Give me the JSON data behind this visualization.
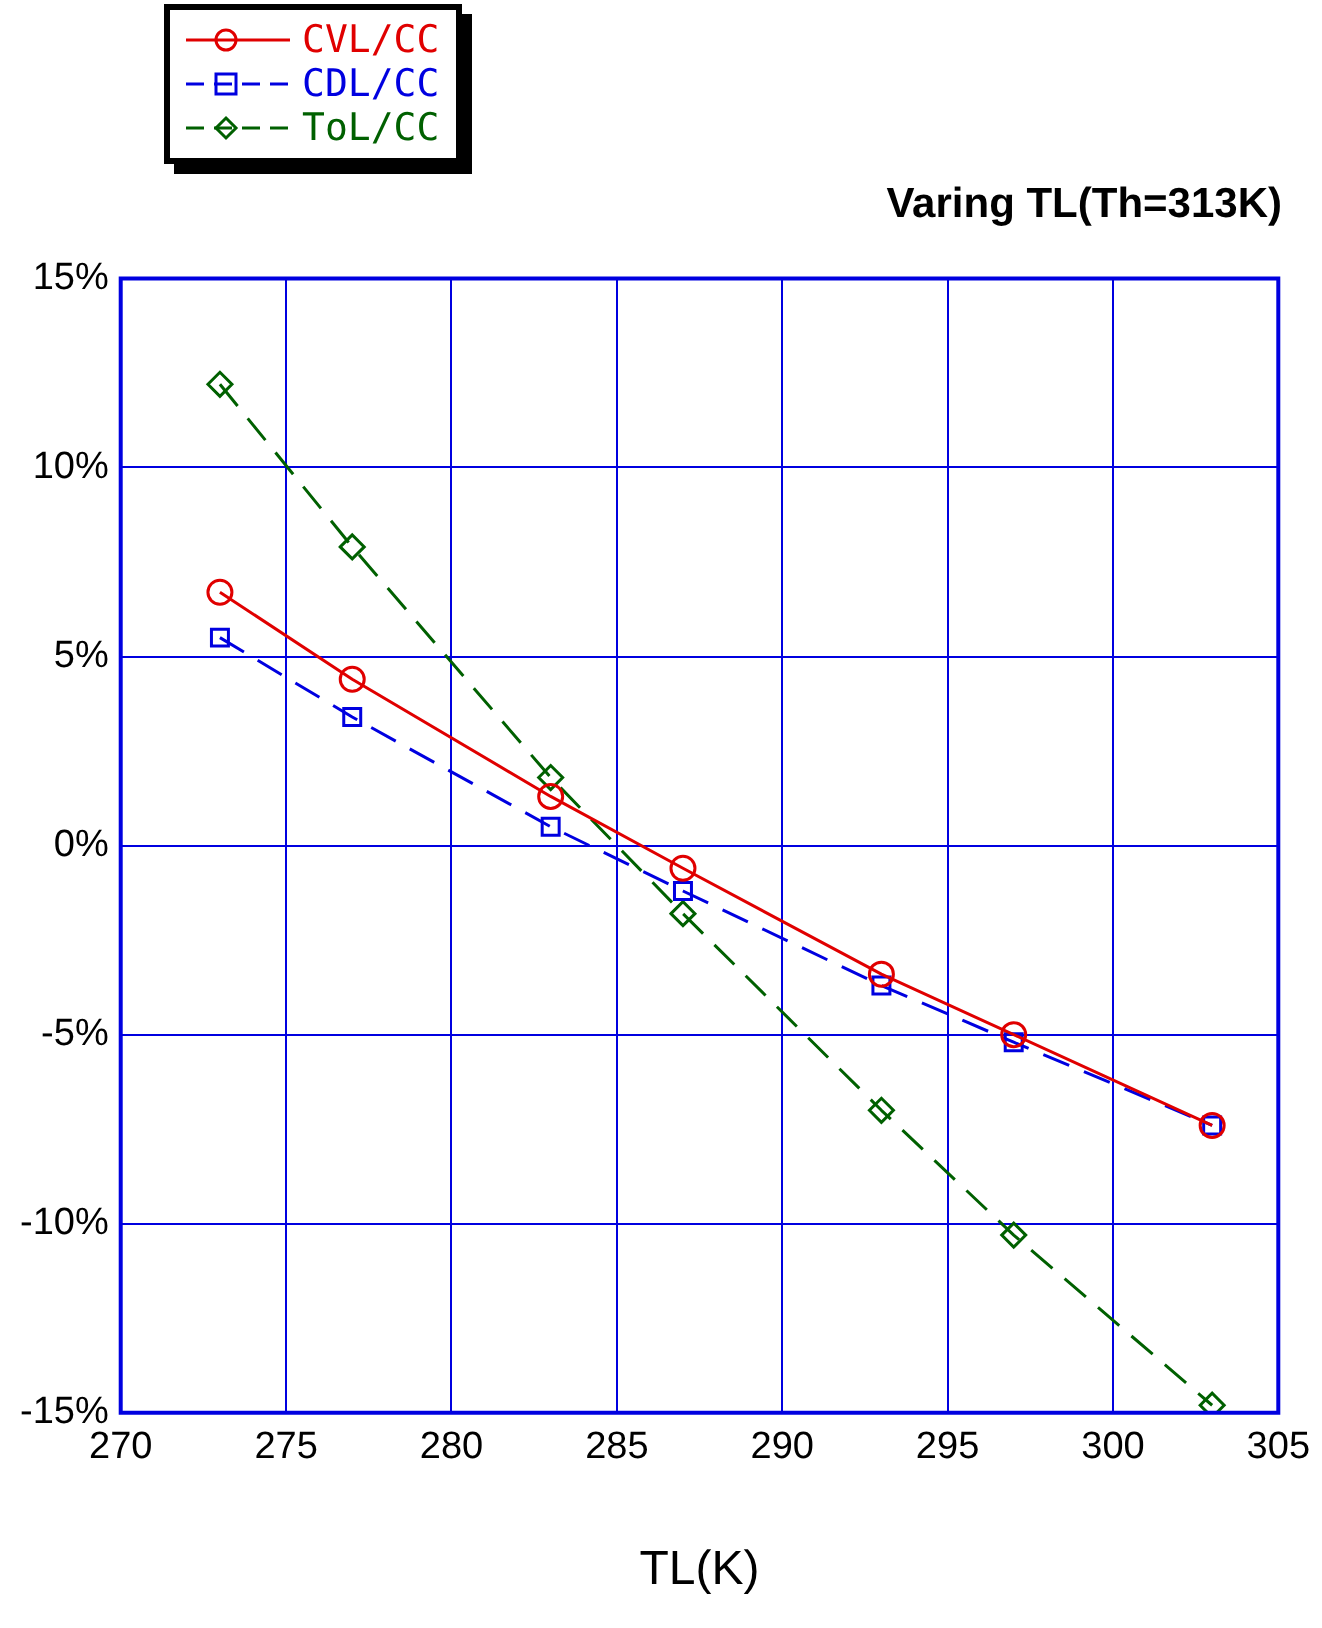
{
  "chart_data": {
    "type": "line",
    "title": "Varing TL(Th=313K)",
    "xlabel": "TL(K)",
    "x": [
      273,
      277,
      283,
      287,
      293,
      297,
      303
    ],
    "series": [
      {
        "name": "CVL/CC",
        "color": "#e00000",
        "marker": "circle",
        "line_style": "solid",
        "values": [
          6.7,
          4.4,
          1.3,
          -0.6,
          -3.4,
          -5.0,
          -7.4
        ]
      },
      {
        "name": "CDL/CC",
        "color": "#0000e0",
        "marker": "square",
        "line_style": "dashed",
        "values": [
          5.5,
          3.4,
          0.5,
          -1.2,
          -3.7,
          -5.2,
          -7.4
        ]
      },
      {
        "name": "ToL/CC",
        "color": "#006000",
        "marker": "diamond",
        "line_style": "dashed",
        "values": [
          12.2,
          7.9,
          1.8,
          -1.8,
          -7.0,
          -10.3,
          -14.8
        ]
      }
    ],
    "xlim": [
      270,
      305
    ],
    "xticks": [
      270,
      275,
      280,
      285,
      290,
      295,
      300,
      305
    ],
    "ylim": [
      -15,
      15
    ],
    "yticks": [
      {
        "value": -15,
        "label": "-15%"
      },
      {
        "value": -10,
        "label": "-10%"
      },
      {
        "value": -5,
        "label": "-5%"
      },
      {
        "value": 0,
        "label": "0%"
      },
      {
        "value": 5,
        "label": "5%"
      },
      {
        "value": 10,
        "label": "10%"
      },
      {
        "value": 15,
        "label": "15%"
      }
    ],
    "grid": true,
    "legend": "top left"
  }
}
